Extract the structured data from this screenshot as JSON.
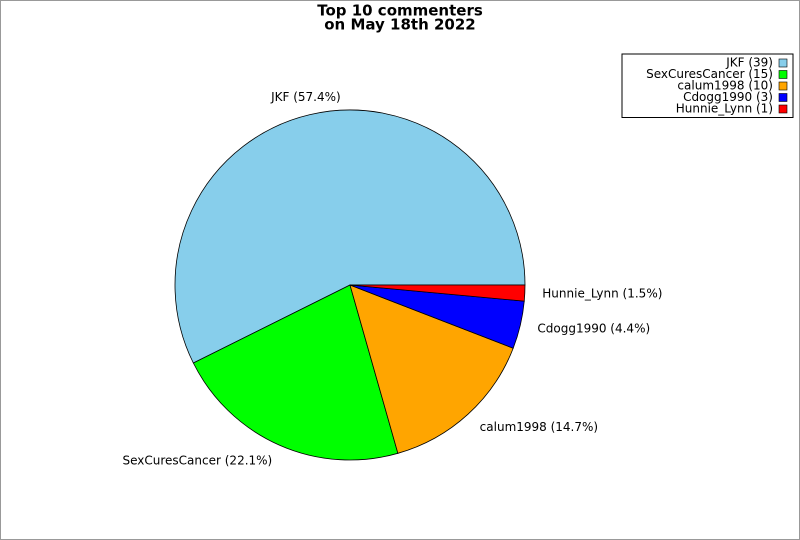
{
  "chart_data": {
    "type": "pie",
    "title": [
      "Top 10 commenters",
      "on May 18th 2022"
    ],
    "legend_labels": [
      "JKF (39)",
      "SexCuresCancer (15)",
      "calum1998 (10)",
      "Cdogg1990 (3)",
      "Hunnie_Lynn (1)"
    ],
    "values": [
      39,
      15,
      10,
      3,
      1
    ],
    "value_labels": [
      "JKF (57.4%)",
      "SexCuresCancer (22.1%)",
      "calum1998 (14.7%)",
      "Cdogg1990 (4.4%)",
      "Hunnie_Lynn (1.5%)"
    ],
    "colors": [
      "#87ceeb",
      "#00ff00",
      "#ffa500",
      "#0000ff",
      "#ff0000"
    ],
    "legend": "upper right"
  }
}
